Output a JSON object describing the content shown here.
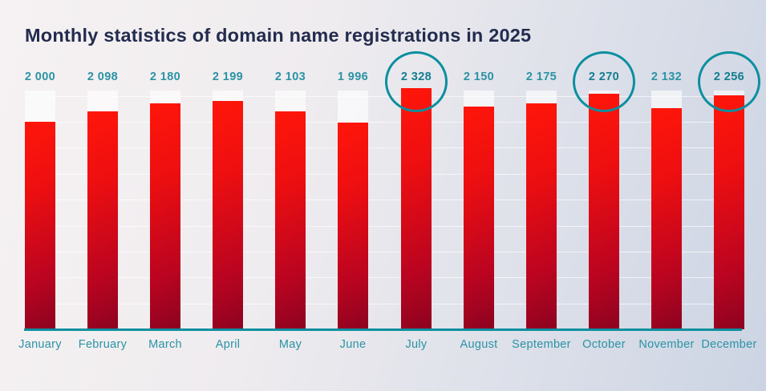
{
  "title": "Monthly statistics of domain name registrations in 2025",
  "colors": {
    "background_start": "#f6f2f3",
    "background_end": "#ccd4e3",
    "title": "#232c4e",
    "value_teal": "#2a93a4",
    "highlight_teal": "#137d8f",
    "axis_teal": "#0b8f9f",
    "gridline": "rgba(255,255,255,0.65)",
    "track_white": "rgba(255,255,255,0.62)",
    "bar_red_top": "#ff160a",
    "bar_red_bottom": "#8c0320"
  },
  "chart_data": {
    "type": "bar",
    "title": "Monthly statistics of domain name registrations in 2025",
    "categories": [
      "January",
      "February",
      "March",
      "April",
      "May",
      "June",
      "July",
      "August",
      "September",
      "October",
      "November",
      "December"
    ],
    "values": [
      2000,
      2098,
      2180,
      2199,
      2103,
      1996,
      2328,
      2150,
      2175,
      2270,
      2132,
      2256
    ],
    "value_labels": [
      "2 000",
      "2 098",
      "2 180",
      "2 199",
      "2 103",
      "1 996",
      "2 328",
      "2 150",
      "2 175",
      "2 270",
      "2 132",
      "2 256"
    ],
    "highlighted_indices": [
      6,
      9,
      11
    ],
    "highlighted_months": [
      "July",
      "October",
      "December"
    ],
    "xlabel": "",
    "ylabel": "",
    "ylim": [
      0,
      2350
    ],
    "gridline_step": 250,
    "grid": "faint horizontal",
    "legend_position": "none"
  }
}
